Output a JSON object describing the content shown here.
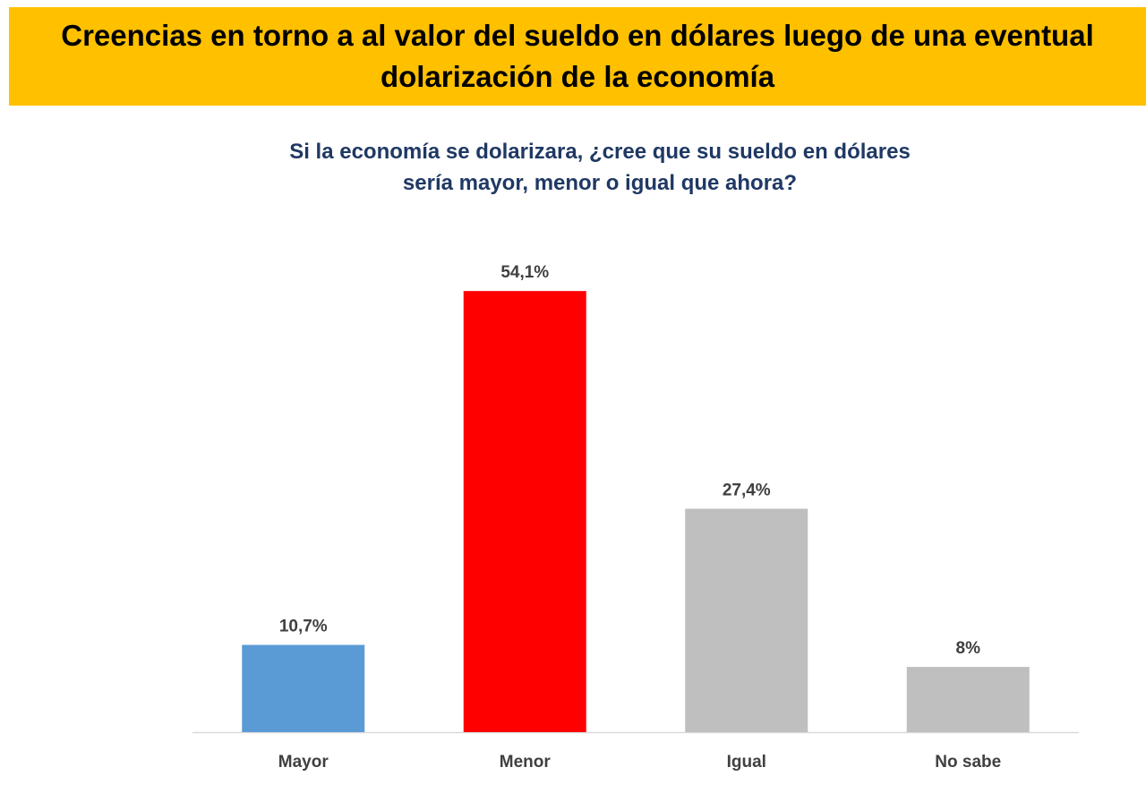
{
  "header": {
    "title": "Creencias en torno a al valor del sueldo en dólares luego de una eventual dolarización de la economía"
  },
  "chart_data": {
    "type": "bar",
    "subtitle_lines": [
      "Si la economía se dolarizara, ¿cree que su sueldo en dólares",
      "sería mayor, menor o igual que ahora?"
    ],
    "categories": [
      "Mayor",
      "Menor",
      "Igual",
      "No sabe"
    ],
    "values": [
      10.7,
      54.1,
      27.4,
      8
    ],
    "value_labels": [
      "10,7%",
      "54,1%",
      "27,4%",
      "8%"
    ],
    "colors": [
      "#5B9BD5",
      "#FF0000",
      "#BFBFBF",
      "#BFBFBF"
    ],
    "ylim": [
      0,
      60
    ],
    "grid": false,
    "legend": "none"
  }
}
